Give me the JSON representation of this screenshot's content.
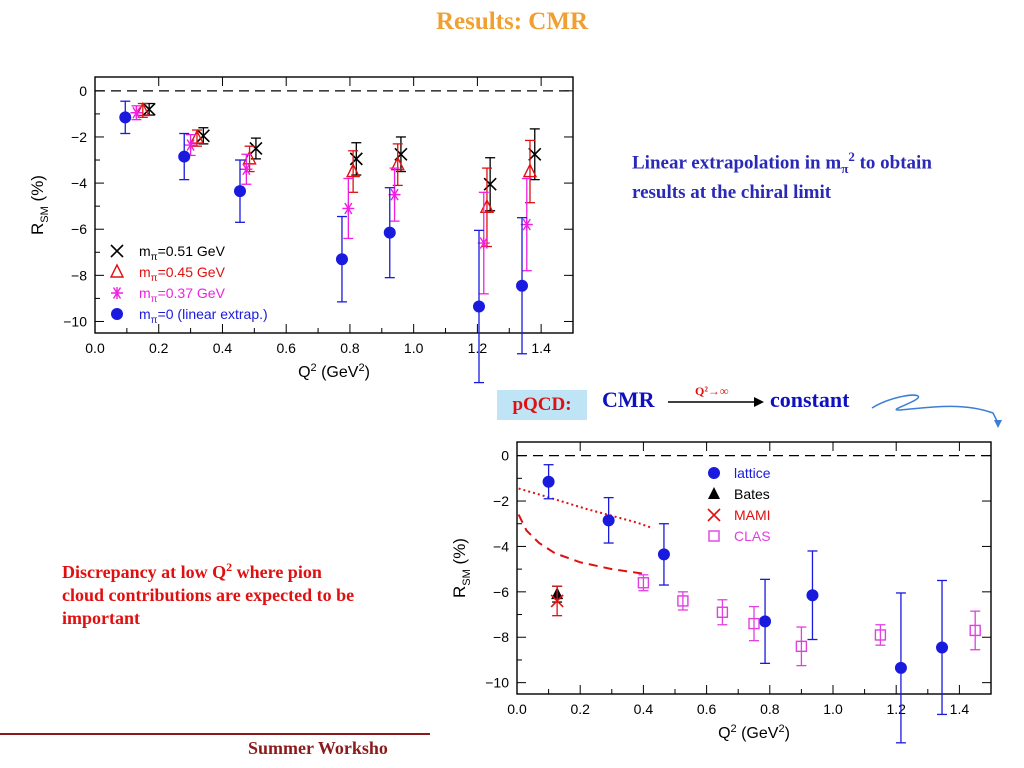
{
  "slide": {
    "title": "Results: CMR",
    "note_linear": "Linear extrapolation in m",
    "note_linear_sub": "π",
    "note_linear_sup": "2",
    "note_linear_rest": " to obtain results at the chiral limit",
    "note_discrepancy_a": "Discrepancy at low Q",
    "note_discrepancy_sup": "2",
    "note_discrepancy_b": " where pion cloud contributions are expected to be important",
    "pqcd_label": "pQCD:",
    "pqcd_cmr": "CMR",
    "pqcd_limit": "Q²→∞",
    "pqcd_constant": "constant",
    "footer": "Summer Worksho"
  },
  "colors": {
    "title": "#f0a030",
    "blue_text": "#2a2ab8",
    "red_text": "#e01010",
    "lattice": "#1a1adf",
    "m051": "#000000",
    "m045": "#e01010",
    "m037": "#f020e0",
    "clas": "#e040e0",
    "pqcd_box": "#bfe4f5"
  },
  "chart_data": [
    {
      "type": "scatter",
      "title": "",
      "xlabel_main": "Q",
      "xlabel_sup": "2",
      "xlabel_unit": "  (GeV",
      "xlabel_unit_sup": "2",
      "xlabel_end": ")",
      "ylabel_main": "R",
      "ylabel_sub": "SM",
      "ylabel_unit": "(%)",
      "xlim": [
        0.0,
        1.5
      ],
      "ylim": [
        -10.5,
        0.6
      ],
      "xticks": [
        "0.0",
        "0.2",
        "0.4",
        "0.6",
        "0.8",
        "1.0",
        "1.2",
        "1.4"
      ],
      "yticks": [
        "0",
        "−2",
        "−4",
        "−6",
        "−8",
        "−10"
      ],
      "legend_position": "bottom-left",
      "zero_line": "dashed",
      "series": [
        {
          "name": "m_π=0.51 GeV",
          "label_main": "m",
          "label_sub": "π",
          "label_rest": "=0.51 GeV",
          "marker": "x",
          "color": "#000000",
          "points": [
            {
              "x": 0.17,
              "y": -0.8,
              "err": 0.25
            },
            {
              "x": 0.34,
              "y": -1.95,
              "err": 0.35
            },
            {
              "x": 0.505,
              "y": -2.5,
              "err": 0.45
            },
            {
              "x": 0.82,
              "y": -2.95,
              "err": 0.7
            },
            {
              "x": 0.96,
              "y": -2.75,
              "err": 0.75
            },
            {
              "x": 1.24,
              "y": -4.05,
              "err": 1.15
            },
            {
              "x": 1.38,
              "y": -2.75,
              "err": 1.1
            }
          ]
        },
        {
          "name": "m_π=0.45 GeV",
          "label_main": "m",
          "label_sub": "π",
          "label_rest": "=0.45 GeV",
          "marker": "triangle",
          "color": "#e01010",
          "points": [
            {
              "x": 0.15,
              "y": -0.85,
              "err": 0.3
            },
            {
              "x": 0.32,
              "y": -2.05,
              "err": 0.35
            },
            {
              "x": 0.485,
              "y": -2.95,
              "err": 0.55
            },
            {
              "x": 0.81,
              "y": -3.5,
              "err": 0.9
            },
            {
              "x": 0.95,
              "y": -3.2,
              "err": 0.9
            },
            {
              "x": 1.23,
              "y": -5.05,
              "err": 1.7
            },
            {
              "x": 1.365,
              "y": -3.5,
              "err": 1.35
            }
          ]
        },
        {
          "name": "m_π=0.37 GeV",
          "label_main": "m",
          "label_sub": "π",
          "label_rest": "=0.37 GeV",
          "marker": "asterisk",
          "color": "#f020e0",
          "points": [
            {
              "x": 0.13,
              "y": -0.95,
              "err": 0.3
            },
            {
              "x": 0.3,
              "y": -2.35,
              "err": 0.45
            },
            {
              "x": 0.475,
              "y": -3.4,
              "err": 0.65
            },
            {
              "x": 0.795,
              "y": -5.1,
              "err": 1.3
            },
            {
              "x": 0.94,
              "y": -4.5,
              "err": 1.15
            },
            {
              "x": 1.22,
              "y": -6.6,
              "err": 2.2
            },
            {
              "x": 1.355,
              "y": -5.8,
              "err": 2.0
            }
          ]
        },
        {
          "name": "m_π=0 (linear extrap.)",
          "label_main": "m",
          "label_sub": "π",
          "label_rest": "=0  (linear extrap.)",
          "marker": "circle",
          "color": "#1a1adf",
          "points": [
            {
              "x": 0.095,
              "y": -1.15,
              "err": 0.7
            },
            {
              "x": 0.28,
              "y": -2.85,
              "err": 1.0
            },
            {
              "x": 0.455,
              "y": -4.35,
              "err": 1.35
            },
            {
              "x": 0.775,
              "y": -7.3,
              "err": 1.85
            },
            {
              "x": 0.925,
              "y": -6.15,
              "err": 1.95
            },
            {
              "x": 1.205,
              "y": -9.35,
              "err": 3.3
            },
            {
              "x": 1.34,
              "y": -8.45,
              "err": 2.95
            }
          ]
        }
      ]
    },
    {
      "type": "scatter",
      "title": "",
      "xlabel_main": "Q",
      "xlabel_sup": "2",
      "xlabel_unit": "  (GeV",
      "xlabel_unit_sup": "2",
      "xlabel_end": ")",
      "ylabel_main": "R",
      "ylabel_sub": "SM",
      "ylabel_unit": "(%)",
      "xlim": [
        0.0,
        1.5
      ],
      "ylim": [
        -10.5,
        0.6
      ],
      "xticks": [
        "0.0",
        "0.2",
        "0.4",
        "0.6",
        "0.8",
        "1.0",
        "1.2",
        "1.4"
      ],
      "yticks": [
        "0",
        "−2",
        "−4",
        "−6",
        "−8",
        "−10"
      ],
      "legend_position": "top-right",
      "zero_line": "dashed",
      "series": [
        {
          "name": "lattice",
          "label_main": "lattice",
          "marker": "circle",
          "color": "#1a1adf",
          "points": [
            {
              "x": 0.1,
              "y": -1.15,
              "err": 0.75
            },
            {
              "x": 0.29,
              "y": -2.85,
              "err": 1.0
            },
            {
              "x": 0.465,
              "y": -4.35,
              "err": 1.35
            },
            {
              "x": 0.785,
              "y": -7.3,
              "err": 1.85
            },
            {
              "x": 0.935,
              "y": -6.15,
              "err": 1.95
            },
            {
              "x": 1.215,
              "y": -9.35,
              "err": 3.3
            },
            {
              "x": 1.345,
              "y": -8.45,
              "err": 2.95
            }
          ]
        },
        {
          "name": "Bates",
          "label_main": "Bates",
          "marker": "triangle-filled",
          "color": "#000000",
          "points": [
            {
              "x": 0.127,
              "y": -6.1,
              "err": 0.35
            }
          ]
        },
        {
          "name": "MAMI",
          "label_main": "MAMI",
          "marker": "x",
          "color": "#e01010",
          "points": [
            {
              "x": 0.127,
              "y": -6.4,
              "err": 0.65
            }
          ]
        },
        {
          "name": "CLAS",
          "label_main": "CLAS",
          "marker": "square-open",
          "color": "#e040e0",
          "points": [
            {
              "x": 0.4,
              "y": -5.6,
              "err": 0.35
            },
            {
              "x": 0.525,
              "y": -6.4,
              "err": 0.4
            },
            {
              "x": 0.65,
              "y": -6.9,
              "err": 0.55
            },
            {
              "x": 0.75,
              "y": -7.4,
              "err": 0.75
            },
            {
              "x": 0.9,
              "y": -8.4,
              "err": 0.85
            },
            {
              "x": 1.15,
              "y": -7.9,
              "err": 0.45
            },
            {
              "x": 1.45,
              "y": -7.7,
              "err": 0.85
            }
          ]
        }
      ],
      "curves": [
        {
          "style": "dotted",
          "color": "#e01010",
          "points": [
            [
              0.005,
              -1.45
            ],
            [
              0.08,
              -1.75
            ],
            [
              0.15,
              -2.05
            ],
            [
              0.22,
              -2.35
            ],
            [
              0.3,
              -2.65
            ],
            [
              0.38,
              -2.95
            ],
            [
              0.43,
              -3.2
            ]
          ]
        },
        {
          "style": "dashed",
          "color": "#e01010",
          "points": [
            [
              0.005,
              -2.6
            ],
            [
              0.03,
              -3.3
            ],
            [
              0.07,
              -3.85
            ],
            [
              0.12,
              -4.3
            ],
            [
              0.2,
              -4.7
            ],
            [
              0.3,
              -5.0
            ],
            [
              0.4,
              -5.2
            ]
          ]
        }
      ]
    }
  ]
}
